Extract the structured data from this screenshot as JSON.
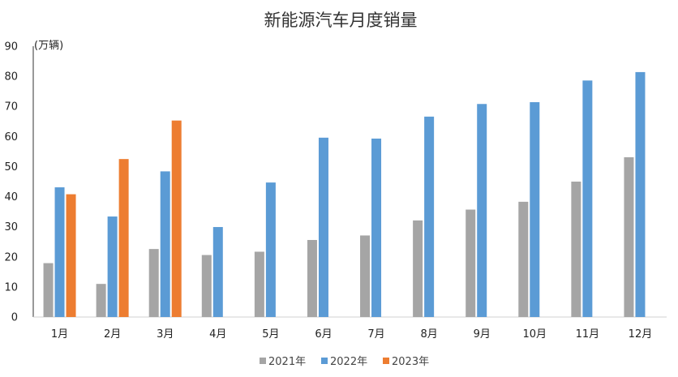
{
  "chart_data": {
    "type": "bar",
    "title": "新能源汽车月度销量",
    "unit_label": "(万辆)",
    "categories": [
      "1月",
      "2月",
      "3月",
      "4月",
      "5月",
      "6月",
      "7月",
      "8月",
      "9月",
      "10月",
      "11月",
      "12月"
    ],
    "ylim": [
      0,
      90
    ],
    "yticks": [
      0,
      10,
      20,
      30,
      40,
      50,
      60,
      70,
      80,
      90
    ],
    "grid": false,
    "legend_position": "bottom-center",
    "series": [
      {
        "name": "2021年",
        "color": "#a5a5a5",
        "values": [
          17.9,
          11.0,
          22.6,
          20.6,
          21.7,
          25.6,
          27.1,
          32.1,
          35.7,
          38.3,
          45.0,
          53.1
        ]
      },
      {
        "name": "2022年",
        "color": "#5b9bd5",
        "values": [
          43.1,
          33.4,
          48.4,
          29.9,
          44.7,
          59.6,
          59.3,
          66.6,
          70.8,
          71.4,
          78.6,
          81.4
        ]
      },
      {
        "name": "2023年",
        "color": "#ed7d31",
        "values": [
          40.8,
          52.5,
          65.3,
          null,
          null,
          null,
          null,
          null,
          null,
          null,
          null,
          null
        ]
      }
    ]
  }
}
